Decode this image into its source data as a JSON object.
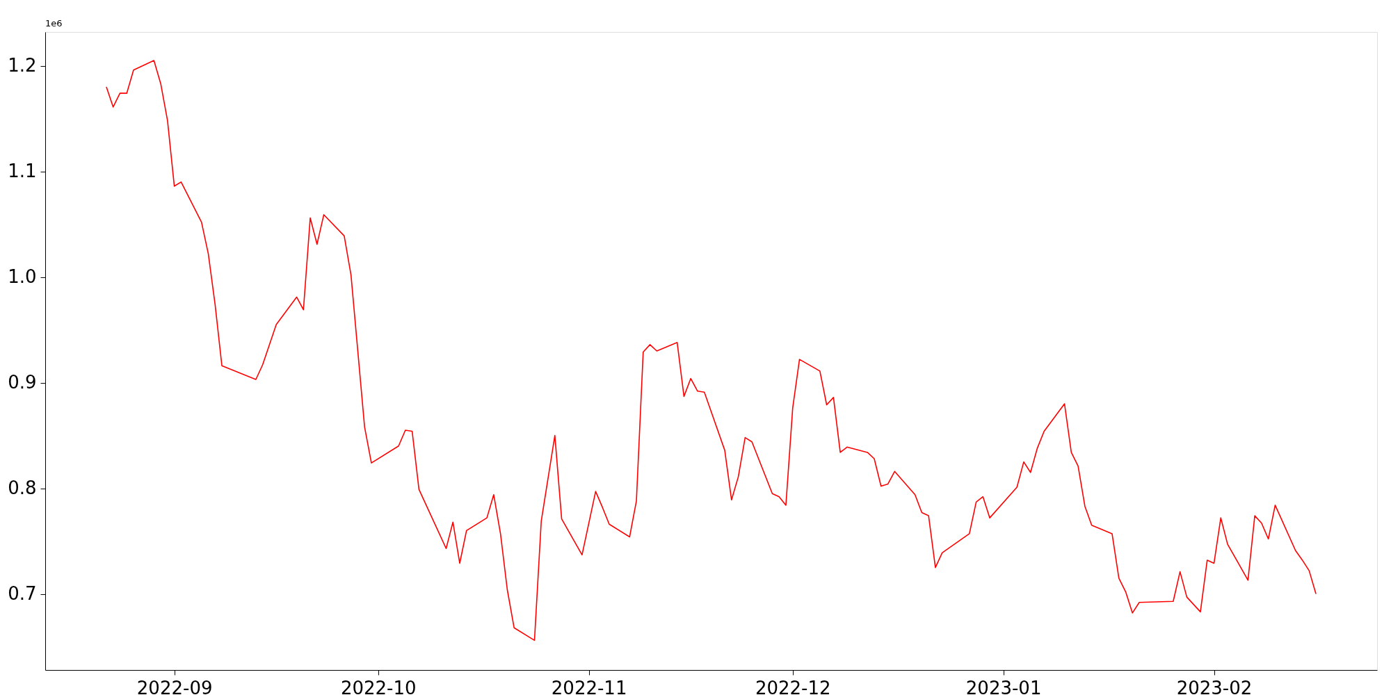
{
  "chart_data": {
    "type": "line",
    "x": [
      "2022-08-22",
      "2022-08-23",
      "2022-08-24",
      "2022-08-25",
      "2022-08-26",
      "2022-08-29",
      "2022-08-30",
      "2022-08-31",
      "2022-09-01",
      "2022-09-02",
      "2022-09-05",
      "2022-09-06",
      "2022-09-07",
      "2022-09-08",
      "2022-09-13",
      "2022-09-14",
      "2022-09-16",
      "2022-09-19",
      "2022-09-20",
      "2022-09-21",
      "2022-09-22",
      "2022-09-23",
      "2022-09-26",
      "2022-09-27",
      "2022-09-29",
      "2022-09-30",
      "2022-10-04",
      "2022-10-05",
      "2022-10-06",
      "2022-10-07",
      "2022-10-11",
      "2022-10-12",
      "2022-10-13",
      "2022-10-14",
      "2022-10-17",
      "2022-10-18",
      "2022-10-19",
      "2022-10-20",
      "2022-10-21",
      "2022-10-24",
      "2022-10-25",
      "2022-10-27",
      "2022-10-28",
      "2022-10-31",
      "2022-11-02",
      "2022-11-03",
      "2022-11-04",
      "2022-11-07",
      "2022-11-08",
      "2022-11-09",
      "2022-11-10",
      "2022-11-11",
      "2022-11-14",
      "2022-11-15",
      "2022-11-16",
      "2022-11-17",
      "2022-11-18",
      "2022-11-21",
      "2022-11-22",
      "2022-11-23",
      "2022-11-24",
      "2022-11-25",
      "2022-11-28",
      "2022-11-29",
      "2022-11-30",
      "2022-12-01",
      "2022-12-02",
      "2022-12-05",
      "2022-12-06",
      "2022-12-07",
      "2022-12-08",
      "2022-12-09",
      "2022-12-12",
      "2022-12-13",
      "2022-12-14",
      "2022-12-15",
      "2022-12-16",
      "2022-12-19",
      "2022-12-20",
      "2022-12-21",
      "2022-12-22",
      "2022-12-23",
      "2022-12-27",
      "2022-12-28",
      "2022-12-29",
      "2022-12-30",
      "2023-01-03",
      "2023-01-04",
      "2023-01-05",
      "2023-01-06",
      "2023-01-07",
      "2023-01-10",
      "2023-01-11",
      "2023-01-12",
      "2023-01-13",
      "2023-01-14",
      "2023-01-17",
      "2023-01-18",
      "2023-01-19",
      "2023-01-20",
      "2023-01-21",
      "2023-01-26",
      "2023-01-27",
      "2023-01-28",
      "2023-01-30",
      "2023-01-31",
      "2023-02-01",
      "2023-02-02",
      "2023-02-03",
      "2023-02-06",
      "2023-02-07",
      "2023-02-08",
      "2023-02-09",
      "2023-02-10",
      "2023-02-13",
      "2023-02-14",
      "2023-02-15",
      "2023-02-16"
    ],
    "series": [
      {
        "color": "#ff0000",
        "values": [
          1.18,
          1.161,
          1.174,
          1.174,
          1.196,
          1.205,
          1.183,
          1.148,
          1.086,
          1.09,
          1.052,
          1.022,
          0.974,
          0.916,
          0.903,
          0.917,
          0.955,
          0.981,
          0.969,
          1.056,
          1.031,
          1.059,
          1.039,
          1.002,
          0.858,
          0.824,
          0.84,
          0.855,
          0.854,
          0.799,
          0.743,
          0.768,
          0.729,
          0.76,
          0.772,
          0.794,
          0.757,
          0.704,
          0.668,
          0.656,
          0.769,
          0.85,
          0.771,
          0.737,
          0.797,
          0.782,
          0.766,
          0.754,
          0.788,
          0.929,
          0.936,
          0.93,
          0.938,
          0.887,
          0.904,
          0.892,
          0.891,
          0.836,
          0.789,
          0.811,
          0.848,
          0.844,
          0.795,
          0.792,
          0.784,
          0.876,
          0.922,
          0.911,
          0.879,
          0.886,
          0.834,
          0.839,
          0.834,
          0.828,
          0.802,
          0.804,
          0.816,
          0.794,
          0.777,
          0.774,
          0.725,
          0.739,
          0.757,
          0.787,
          0.792,
          0.772,
          0.801,
          0.825,
          0.815,
          0.838,
          0.854,
          0.88,
          0.834,
          0.821,
          0.783,
          0.765,
          0.757,
          0.715,
          0.702,
          0.682,
          0.692,
          0.693,
          0.721,
          0.697,
          0.683,
          0.732,
          0.729,
          0.772,
          0.747,
          0.713,
          0.774,
          0.767,
          0.752,
          0.784,
          0.741,
          0.732,
          0.722,
          0.7
        ]
      }
    ],
    "xlim": [
      "2022-08-13",
      "2023-02-25"
    ],
    "xticks": [
      "2022-09",
      "2022-10",
      "2022-11",
      "2022-12",
      "2023-01",
      "2023-02"
    ],
    "ylim": [
      0.628,
      1.232
    ],
    "yticks": [
      0.7,
      0.8,
      0.9,
      {
        "value": 1.0,
        "label": "1.0"
      },
      1.1,
      1.2
    ],
    "annotations": [
      "1e6"
    ],
    "grid": false,
    "marker": "none",
    "line_style": "solid"
  }
}
